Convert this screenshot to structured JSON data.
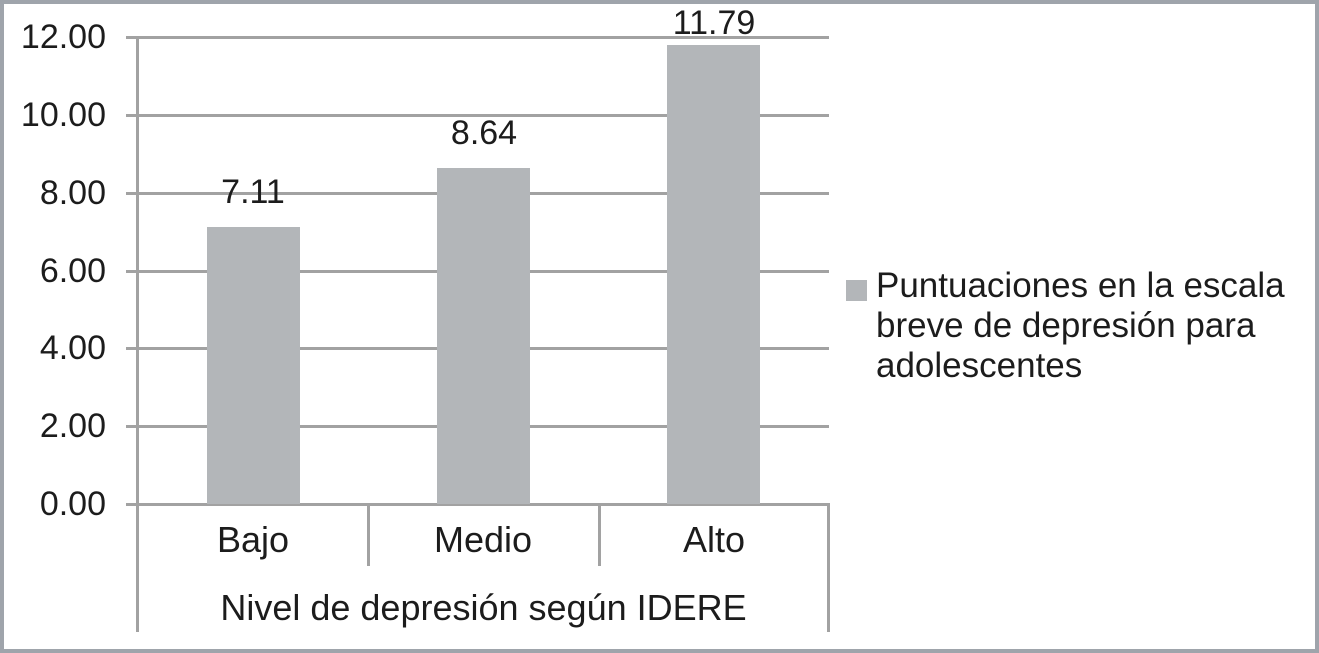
{
  "chart_data": {
    "type": "bar",
    "title": "",
    "categories": [
      "Bajo",
      "Medio",
      "Alto"
    ],
    "values": [
      7.11,
      8.64,
      11.79
    ],
    "value_labels": [
      "7.11",
      "8.64",
      "11.79"
    ],
    "series_name": "Puntuaciones en la escala breve de depresión para adolescentes",
    "xlabel": "Nivel de depresión según IDERE",
    "ylabel": "",
    "ylim": [
      0,
      12
    ],
    "ytick_step": 2,
    "ytick_labels": [
      "0.00",
      "2.00",
      "4.00",
      "6.00",
      "8.00",
      "10.00",
      "12.00"
    ],
    "grid": true,
    "legend_position": "right",
    "legend_marker": "square-icon",
    "bar_color": "#b3b6b9",
    "gridline_color": "#a2a2a2",
    "text_color": "#1c1c1c",
    "frame_color": "#9fa4ab"
  }
}
